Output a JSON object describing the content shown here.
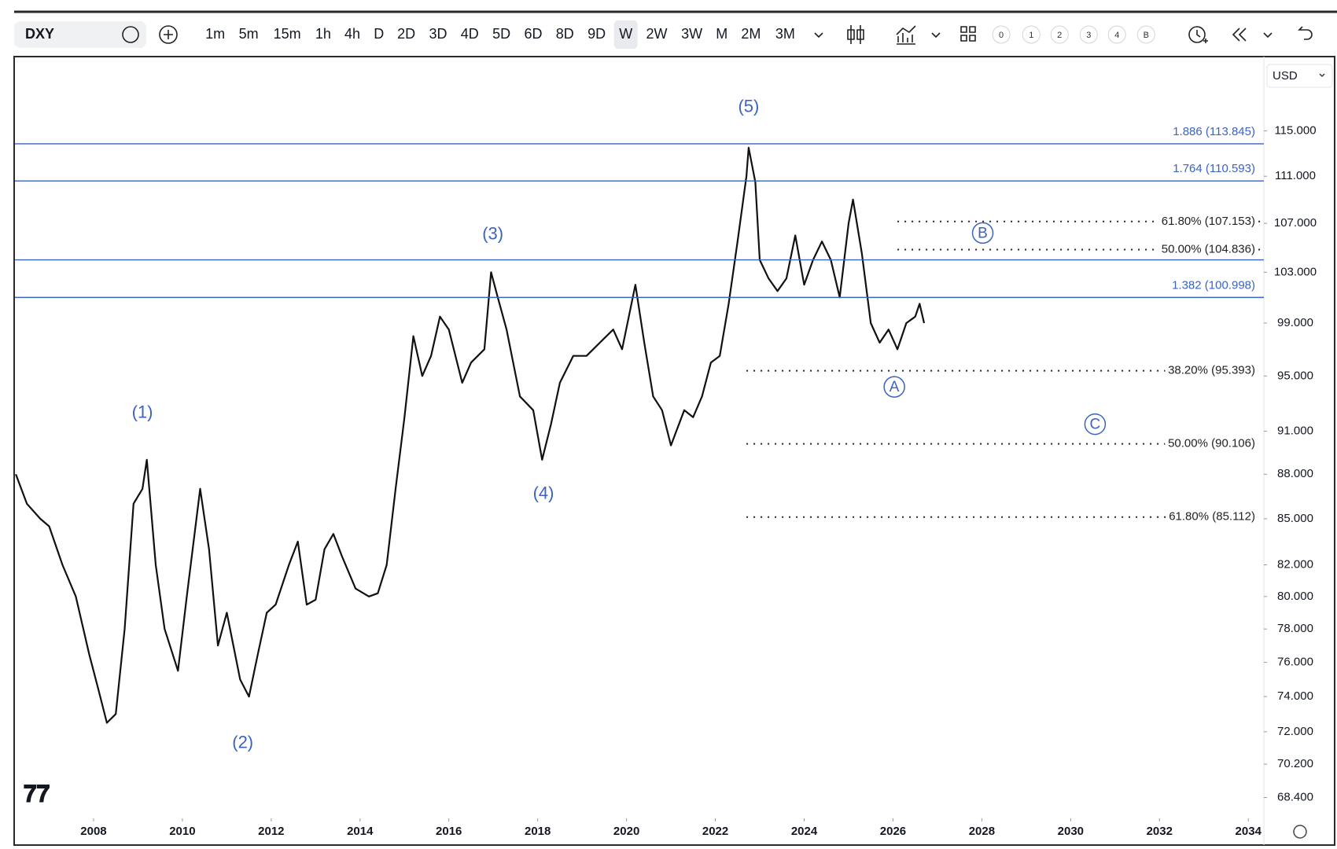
{
  "toolbar": {
    "symbol": "DXY",
    "intervals": [
      "1m",
      "5m",
      "15m",
      "1h",
      "4h",
      "D",
      "2D",
      "3D",
      "4D",
      "5D",
      "6D",
      "8D",
      "9D",
      "W",
      "2W",
      "3W",
      "M",
      "2M",
      "3M"
    ],
    "active_interval": "W",
    "counts": [
      "0",
      "1",
      "2",
      "3",
      "4",
      "B"
    ]
  },
  "currency": "USD",
  "chart_data": {
    "type": "line",
    "log_scale": true,
    "color": "#111111",
    "x": [
      2006.25,
      2006.5,
      2006.8,
      2007.0,
      2007.3,
      2007.6,
      2007.9,
      2008.1,
      2008.3,
      2008.5,
      2008.7,
      2008.9,
      2009.1,
      2009.2,
      2009.4,
      2009.6,
      2009.9,
      2010.1,
      2010.4,
      2010.6,
      2010.8,
      2011.0,
      2011.3,
      2011.5,
      2011.7,
      2011.9,
      2012.1,
      2012.4,
      2012.6,
      2012.8,
      2013.0,
      2013.2,
      2013.4,
      2013.6,
      2013.9,
      2014.2,
      2014.4,
      2014.6,
      2014.8,
      2015.0,
      2015.2,
      2015.4,
      2015.6,
      2015.8,
      2016.0,
      2016.3,
      2016.5,
      2016.8,
      2016.95,
      2017.1,
      2017.3,
      2017.6,
      2017.9,
      2018.1,
      2018.3,
      2018.5,
      2018.8,
      2019.1,
      2019.4,
      2019.7,
      2019.9,
      2020.2,
      2020.4,
      2020.6,
      2020.8,
      2021.0,
      2021.3,
      2021.5,
      2021.7,
      2021.9,
      2022.1,
      2022.3,
      2022.5,
      2022.7,
      2022.75,
      2022.9,
      2023.0,
      2023.2,
      2023.4,
      2023.6,
      2023.8,
      2024.0,
      2024.2,
      2024.4,
      2024.6,
      2024.8,
      2025.0,
      2025.1,
      2025.3,
      2025.5,
      2025.7,
      2025.9,
      2026.1,
      2026.3,
      2026.5,
      2026.6,
      2026.7
    ],
    "values": [
      88,
      86,
      85,
      84.5,
      82,
      80,
      76.5,
      74.5,
      72.5,
      73,
      78,
      86,
      87,
      89,
      82,
      78,
      75.5,
      80,
      87,
      83,
      77,
      79,
      75,
      74,
      76.5,
      79,
      79.5,
      82,
      83.5,
      79.5,
      79.8,
      83,
      84,
      82.5,
      80.5,
      80,
      80.2,
      82,
      87,
      92,
      98,
      95,
      96.5,
      99.5,
      98.5,
      94.5,
      96,
      97,
      103,
      101,
      98.5,
      93.5,
      92.5,
      89,
      91.5,
      94.5,
      96.5,
      96.5,
      97.5,
      98.5,
      97,
      102,
      97.5,
      93.5,
      92.5,
      90,
      92.5,
      92,
      93.5,
      96,
      96.5,
      100.5,
      105.5,
      111,
      113.5,
      110.5,
      104,
      102.5,
      101.5,
      102.5,
      106,
      102,
      104,
      105.5,
      104,
      101,
      107,
      109,
      104.5,
      99,
      97.5,
      98.5,
      97,
      99,
      99.5,
      100.5,
      99
    ],
    "xlim": [
      2006.23,
      2034.35
    ],
    "xticks": [
      2008,
      2010,
      2012,
      2014,
      2016,
      2018,
      2020,
      2022,
      2024,
      2026,
      2028,
      2030,
      2032,
      2034
    ],
    "ylim": [
      67.3,
      121.7
    ],
    "yticks": [
      {
        "value": 115,
        "label": "115.000"
      },
      {
        "value": 111,
        "label": "111.000"
      },
      {
        "value": 107,
        "label": "107.000"
      },
      {
        "value": 103,
        "label": "103.000"
      },
      {
        "value": 99,
        "label": "99.000"
      },
      {
        "value": 95,
        "label": "95.000"
      },
      {
        "value": 91,
        "label": "91.000"
      },
      {
        "value": 88,
        "label": "88.000"
      },
      {
        "value": 85,
        "label": "85.000"
      },
      {
        "value": 82,
        "label": "82.000"
      },
      {
        "value": 80,
        "label": "80.000"
      },
      {
        "value": 78,
        "label": "78.000"
      },
      {
        "value": 76,
        "label": "76.000"
      },
      {
        "value": 74,
        "label": "74.000"
      },
      {
        "value": 72,
        "label": "72.000"
      },
      {
        "value": 70.2,
        "label": "70.200"
      },
      {
        "value": 68.4,
        "label": "68.400"
      }
    ],
    "levels": [
      {
        "value": 113.845,
        "label": "1.886 (113.845)",
        "style": "solid"
      },
      {
        "value": 110.593,
        "label": "1.764 (110.593)",
        "style": "solid"
      },
      {
        "value": 104.0,
        "style": "solid"
      },
      {
        "value": 100.998,
        "label": "1.382 (100.998)",
        "style": "solid"
      },
      {
        "value": 107.153,
        "label": "61.80% (107.153)",
        "style": "dotted",
        "start": 2026.1
      },
      {
        "value": 104.836,
        "label": "50.00% (104.836)",
        "style": "dotted",
        "start": 2026.1
      },
      {
        "value": 95.393,
        "label": "38.20% (95.393)",
        "style": "dotted",
        "start": 2022.7
      },
      {
        "value": 90.106,
        "label": "50.00% (90.106)",
        "style": "dotted",
        "start": 2022.7
      },
      {
        "value": 85.112,
        "label": "61.80% (85.112)",
        "style": "dotted",
        "start": 2022.7
      }
    ],
    "annotations": [
      {
        "text": "(1)",
        "x": 2009.1,
        "y": 92.35
      },
      {
        "text": "(2)",
        "x": 2011.36,
        "y": 71.4
      },
      {
        "text": "(3)",
        "x": 2016.99,
        "y": 106.1
      },
      {
        "text": "(4)",
        "x": 2018.13,
        "y": 86.7
      },
      {
        "text": "(5)",
        "x": 2022.75,
        "y": 117.2
      },
      {
        "text": "A",
        "x": 2026.03,
        "y": 94.2,
        "circled": true
      },
      {
        "text": "B",
        "x": 2028.02,
        "y": 106.2,
        "circled": true
      },
      {
        "text": "C",
        "x": 2030.55,
        "y": 91.5,
        "circled": true
      }
    ]
  }
}
